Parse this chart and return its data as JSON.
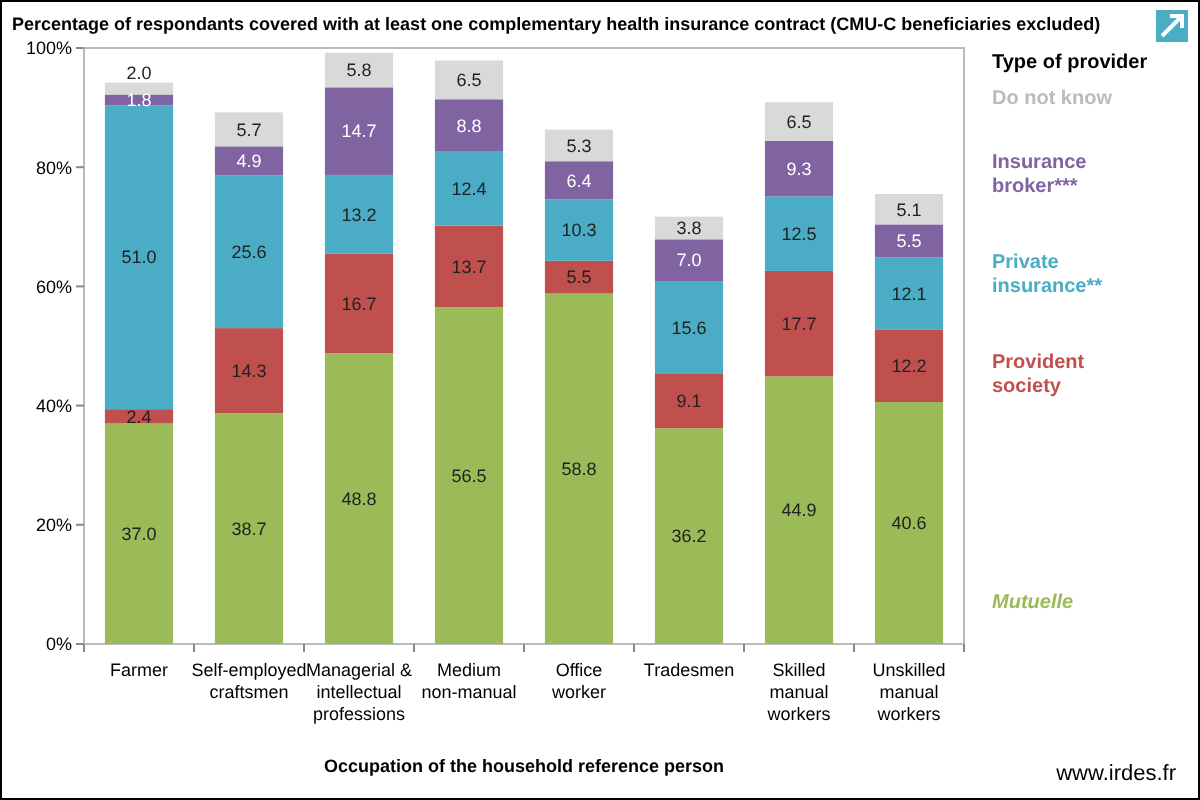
{
  "chart_data": {
    "type": "bar",
    "title": "Percentage of respondants covered with at least one complementary health insurance contract (CMU-C beneficiaries excluded)",
    "xlabel": "Occupation of the household reference person",
    "legend_title": "Type of provider",
    "annotations": [
      "www.irdes.fr"
    ],
    "categories": [
      "Farmer",
      "Self-employed craftsmen",
      "Managerial & intellectual professions",
      "Medium non-manual",
      "Office worker",
      "Tradesmen",
      "Skilled manual workers",
      "Unskilled manual workers"
    ],
    "stacked": true,
    "legend": "right",
    "grid": false,
    "ylim": [
      0,
      100
    ],
    "yticks": [
      {
        "value": 0,
        "label": "0%"
      },
      {
        "value": 20,
        "label": "20%"
      },
      {
        "value": 40,
        "label": "40%"
      },
      {
        "value": 60,
        "label": "60%"
      },
      {
        "value": 80,
        "label": "80%"
      },
      {
        "value": 100,
        "label": "100%"
      }
    ],
    "series": [
      {
        "name": "Mutuelle",
        "color": "#9bbb59",
        "values": [
          37.0,
          38.7,
          48.8,
          56.5,
          58.8,
          36.2,
          44.9,
          40.6
        ],
        "value_labels": [
          "37.0",
          "38.7",
          "48.8",
          "56.5",
          "58.8",
          "36.2",
          "44.9",
          "40.6"
        ]
      },
      {
        "name": "Provident society",
        "color": "#c0504d",
        "values": [
          2.4,
          14.3,
          16.7,
          13.7,
          5.5,
          9.1,
          17.7,
          12.2
        ],
        "value_labels": [
          "2.4",
          "14.3",
          "16.7",
          "13.7",
          "5.5",
          "9.1",
          "17.7",
          "12.2"
        ]
      },
      {
        "name": "Private insurance**",
        "color": "#4bacc6",
        "values": [
          51.0,
          25.6,
          13.2,
          12.4,
          10.3,
          15.6,
          12.5,
          12.1
        ],
        "value_labels": [
          "51.0",
          "25.6",
          "13.2",
          "12.4",
          "10.3",
          "15.6",
          "12.5",
          "12.1"
        ]
      },
      {
        "name": "Insurance broker***",
        "color": "#8064a2",
        "values": [
          1.8,
          4.9,
          14.7,
          8.8,
          6.4,
          7.0,
          9.3,
          5.5
        ],
        "value_labels": [
          "1.8",
          "4.9",
          "14.7",
          "8.8",
          "6.4",
          "7.0",
          "9.3",
          "5.5"
        ]
      },
      {
        "name": "Do not know",
        "color": "#d9d9d9",
        "values": [
          2.0,
          5.7,
          5.8,
          6.5,
          5.3,
          3.8,
          6.5,
          5.1
        ],
        "value_labels": [
          "2.0",
          "5.7",
          "5.8",
          "6.5",
          "5.3",
          "3.8",
          "6.5",
          "5.1"
        ]
      }
    ]
  }
}
